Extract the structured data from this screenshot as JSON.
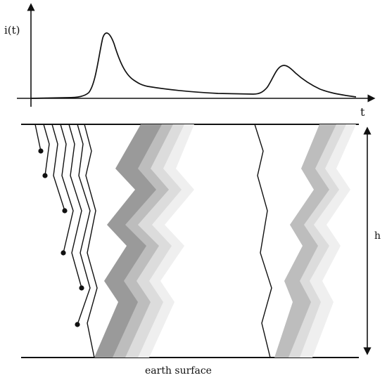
{
  "labels": {
    "current_axis": "i(t)",
    "time_axis": "t",
    "height": "h",
    "ground": "earth surface"
  },
  "colors": {
    "ink": "#111111",
    "channel_dark": "#9a9a9a",
    "channel_mid": "#bdbdbd",
    "channel_light": "#dcdcdc",
    "channel_faint": "#efefef"
  },
  "pulses": {
    "first_stroke": "large peak",
    "subsequent_stroke": "smaller peak"
  }
}
